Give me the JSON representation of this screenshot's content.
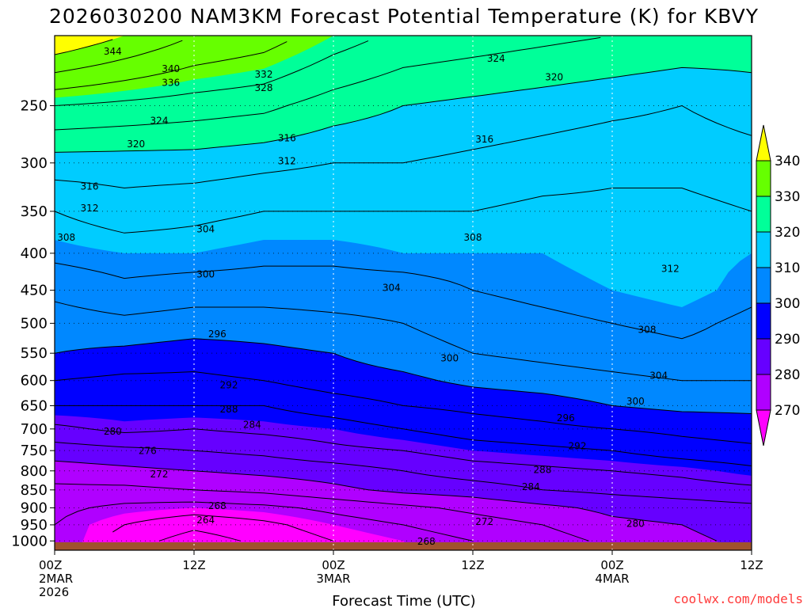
{
  "chart_data": {
    "type": "heatmap",
    "title": "2026030200 NAM3KM Forecast Potential Temperature (K) for KBVY",
    "xlabel": "Forecast Time (UTC)",
    "ylabel": "",
    "credit": "coolwx.com/models",
    "units": "K",
    "x_ticks": [
      {
        "hour": 0,
        "label": "00Z",
        "sub": "2MAR",
        "sub2": "2026"
      },
      {
        "hour": 12,
        "label": "12Z",
        "sub": "",
        "sub2": ""
      },
      {
        "hour": 24,
        "label": "00Z",
        "sub": "3MAR",
        "sub2": ""
      },
      {
        "hour": 36,
        "label": "12Z",
        "sub": "",
        "sub2": ""
      },
      {
        "hour": 48,
        "label": "00Z",
        "sub": "4MAR",
        "sub2": ""
      },
      {
        "hour": 60,
        "label": "12Z",
        "sub": "",
        "sub2": ""
      }
    ],
    "xlim": [
      0,
      60
    ],
    "y_ticks": [
      "250",
      "300",
      "350",
      "400",
      "450",
      "500",
      "550",
      "600",
      "650",
      "700",
      "750",
      "800",
      "850",
      "900",
      "950",
      "1000"
    ],
    "ylim": [
      1030,
      200
    ],
    "colorbar": {
      "labels": [
        "340",
        "330",
        "320",
        "310",
        "300",
        "290",
        "280",
        "270"
      ],
      "colors": [
        "#ffff00",
        "#66ff00",
        "#00ff99",
        "#00ccff",
        "#0088ff",
        "#0000ff",
        "#6600ff",
        "#b000ff",
        "#ff00ff"
      ]
    },
    "levels_hpa": [
      200,
      250,
      300,
      350,
      400,
      450,
      500,
      550,
      600,
      650,
      700,
      750,
      800,
      850,
      900,
      950,
      1000
    ],
    "hours": [
      0,
      6,
      12,
      18,
      24,
      30,
      36,
      42,
      48,
      54,
      60
    ],
    "theta_K": [
      [
        344,
        340,
        336,
        334,
        330,
        327,
        326,
        325,
        324,
        323,
        322
      ],
      [
        328,
        327,
        326,
        325,
        322,
        320,
        319,
        318,
        317,
        316,
        318
      ],
      [
        318,
        318,
        318,
        317,
        316,
        316,
        315,
        314,
        313,
        313,
        314
      ],
      [
        312,
        314,
        313,
        312,
        312,
        312,
        312,
        311,
        311,
        311,
        312
      ],
      [
        309,
        310,
        310,
        309,
        309,
        310,
        310,
        310,
        311,
        311,
        310
      ],
      [
        305,
        307,
        306,
        306,
        306,
        306,
        308,
        309,
        310,
        311,
        309
      ],
      [
        302,
        303,
        302,
        302,
        303,
        304,
        306,
        307,
        308,
        309,
        307
      ],
      [
        300,
        299,
        298,
        299,
        300,
        302,
        304,
        305,
        306,
        307,
        306
      ],
      [
        296,
        295,
        295,
        296,
        298,
        299,
        301,
        302,
        303,
        304,
        304
      ],
      [
        292,
        292,
        292,
        292,
        294,
        296,
        297,
        298,
        300,
        301,
        301
      ],
      [
        287,
        289,
        288,
        289,
        290,
        292,
        294,
        295,
        296,
        297,
        298
      ],
      [
        282,
        283,
        284,
        285,
        287,
        288,
        290,
        291,
        292,
        294,
        295
      ],
      [
        278,
        279,
        280,
        281,
        282,
        284,
        286,
        287,
        288,
        289,
        291
      ],
      [
        275,
        275,
        276,
        277,
        279,
        281,
        282,
        284,
        285,
        286,
        287
      ],
      [
        273,
        271,
        270,
        271,
        273,
        275,
        277,
        279,
        281,
        282,
        283
      ],
      [
        272,
        268,
        265,
        267,
        270,
        272,
        274,
        276,
        279,
        280,
        282
      ],
      [
        273,
        266,
        262,
        265,
        268,
        270,
        272,
        274,
        277,
        279,
        281
      ]
    ],
    "contour_labels": [
      {
        "value": "344",
        "hour": 5.0,
        "p": 210
      },
      {
        "value": "340",
        "hour": 10.0,
        "p": 222
      },
      {
        "value": "336",
        "hour": 10.0,
        "p": 232
      },
      {
        "value": "332",
        "hour": 18.0,
        "p": 226
      },
      {
        "value": "328",
        "hour": 18.0,
        "p": 236
      },
      {
        "value": "324",
        "hour": 9.0,
        "p": 262
      },
      {
        "value": "320",
        "hour": 7.0,
        "p": 282
      },
      {
        "value": "316",
        "hour": 20.0,
        "p": 277
      },
      {
        "value": "312",
        "hour": 20.0,
        "p": 298
      },
      {
        "value": "316",
        "hour": 3.0,
        "p": 323
      },
      {
        "value": "312",
        "hour": 3.0,
        "p": 346
      },
      {
        "value": "308",
        "hour": 1.0,
        "p": 380
      },
      {
        "value": "304",
        "hour": 13.0,
        "p": 370
      },
      {
        "value": "300",
        "hour": 13.0,
        "p": 427
      },
      {
        "value": "296",
        "hour": 14.0,
        "p": 517
      },
      {
        "value": "292",
        "hour": 15.0,
        "p": 608
      },
      {
        "value": "288",
        "hour": 15.0,
        "p": 657
      },
      {
        "value": "284",
        "hour": 17.0,
        "p": 690
      },
      {
        "value": "280",
        "hour": 5.0,
        "p": 705
      },
      {
        "value": "276",
        "hour": 8.0,
        "p": 750
      },
      {
        "value": "272",
        "hour": 9.0,
        "p": 808
      },
      {
        "value": "268",
        "hour": 14.0,
        "p": 893
      },
      {
        "value": "264",
        "hour": 13.0,
        "p": 935
      },
      {
        "value": "304",
        "hour": 29.0,
        "p": 446
      },
      {
        "value": "300",
        "hour": 34.0,
        "p": 558
      },
      {
        "value": "308",
        "hour": 36.0,
        "p": 380
      },
      {
        "value": "316",
        "hour": 37.0,
        "p": 278
      },
      {
        "value": "324",
        "hour": 38.0,
        "p": 215
      },
      {
        "value": "320",
        "hour": 43.0,
        "p": 228
      },
      {
        "value": "312",
        "hour": 53.0,
        "p": 420
      },
      {
        "value": "308",
        "hour": 51.0,
        "p": 510
      },
      {
        "value": "304",
        "hour": 52.0,
        "p": 590
      },
      {
        "value": "300",
        "hour": 50.0,
        "p": 640
      },
      {
        "value": "296",
        "hour": 44.0,
        "p": 675
      },
      {
        "value": "292",
        "hour": 45.0,
        "p": 738
      },
      {
        "value": "288",
        "hour": 42.0,
        "p": 796
      },
      {
        "value": "284",
        "hour": 41.0,
        "p": 841
      },
      {
        "value": "280",
        "hour": 50.0,
        "p": 945
      },
      {
        "value": "272",
        "hour": 37.0,
        "p": 940
      },
      {
        "value": "268",
        "hour": 32.0,
        "p": 1001
      }
    ]
  }
}
